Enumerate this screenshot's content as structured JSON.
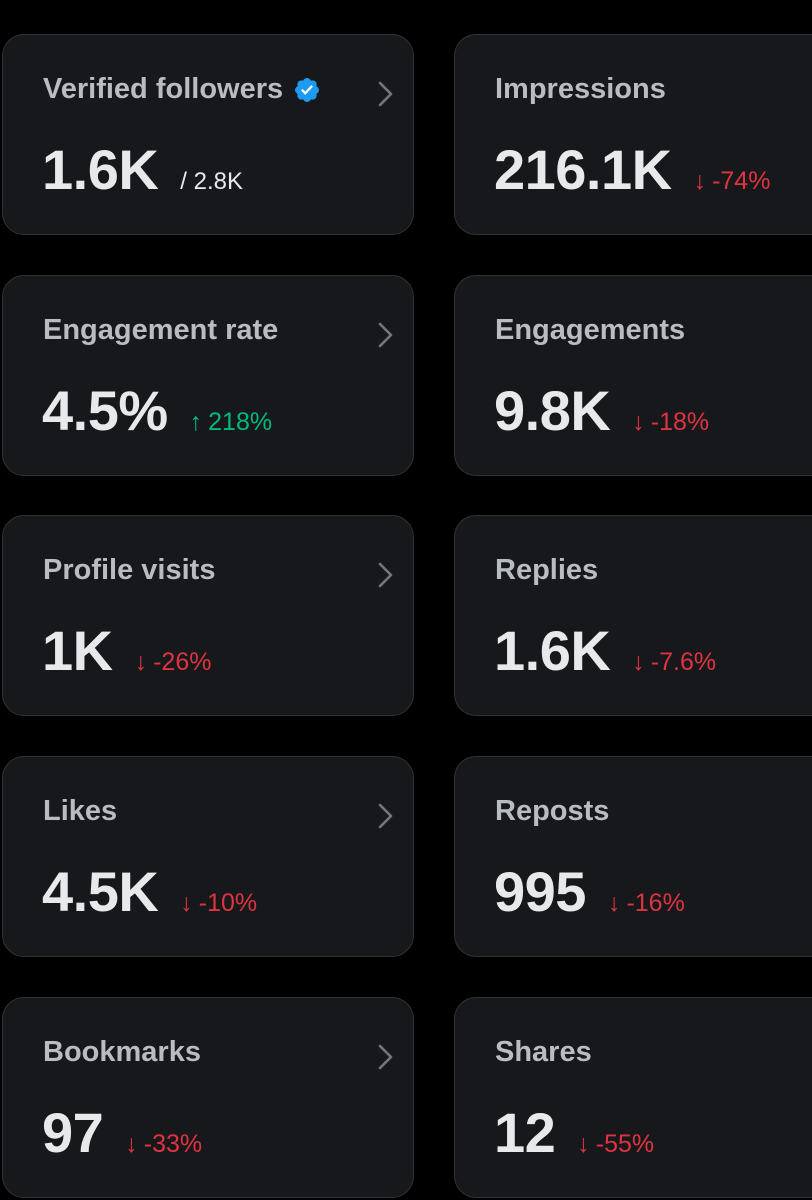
{
  "colors": {
    "background": "#000000",
    "card": "#16181c",
    "border": "#2f3336",
    "label": "#b9bcc1",
    "value": "#e7e9ea",
    "negative": "#e0333f",
    "positive": "#00ba7c",
    "verified": "#1d9bf0"
  },
  "cards": {
    "verified_followers": {
      "label": "Verified followers",
      "value": "1.6K",
      "total": "/ 2.8K",
      "icon": "verified-badge-icon"
    },
    "impressions": {
      "label": "Impressions",
      "value": "216.1K",
      "arrow": "↓",
      "delta": "-74%"
    },
    "engagement_rate": {
      "label": "Engagement rate",
      "value": "4.5%",
      "arrow": "↑",
      "delta": "218%"
    },
    "engagements": {
      "label": "Engagements",
      "value": "9.8K",
      "arrow": "↓",
      "delta": "-18%"
    },
    "profile_visits": {
      "label": "Profile visits",
      "value": "1K",
      "arrow": "↓",
      "delta": "-26%"
    },
    "replies": {
      "label": "Replies",
      "value": "1.6K",
      "arrow": "↓",
      "delta": "-7.6%"
    },
    "likes": {
      "label": "Likes",
      "value": "4.5K",
      "arrow": "↓",
      "delta": "-10%"
    },
    "reposts": {
      "label": "Reposts",
      "value": "995",
      "arrow": "↓",
      "delta": "-16%"
    },
    "bookmarks": {
      "label": "Bookmarks",
      "value": "97",
      "arrow": "↓",
      "delta": "-33%"
    },
    "shares": {
      "label": "Shares",
      "value": "12",
      "arrow": "↓",
      "delta": "-55%"
    }
  }
}
